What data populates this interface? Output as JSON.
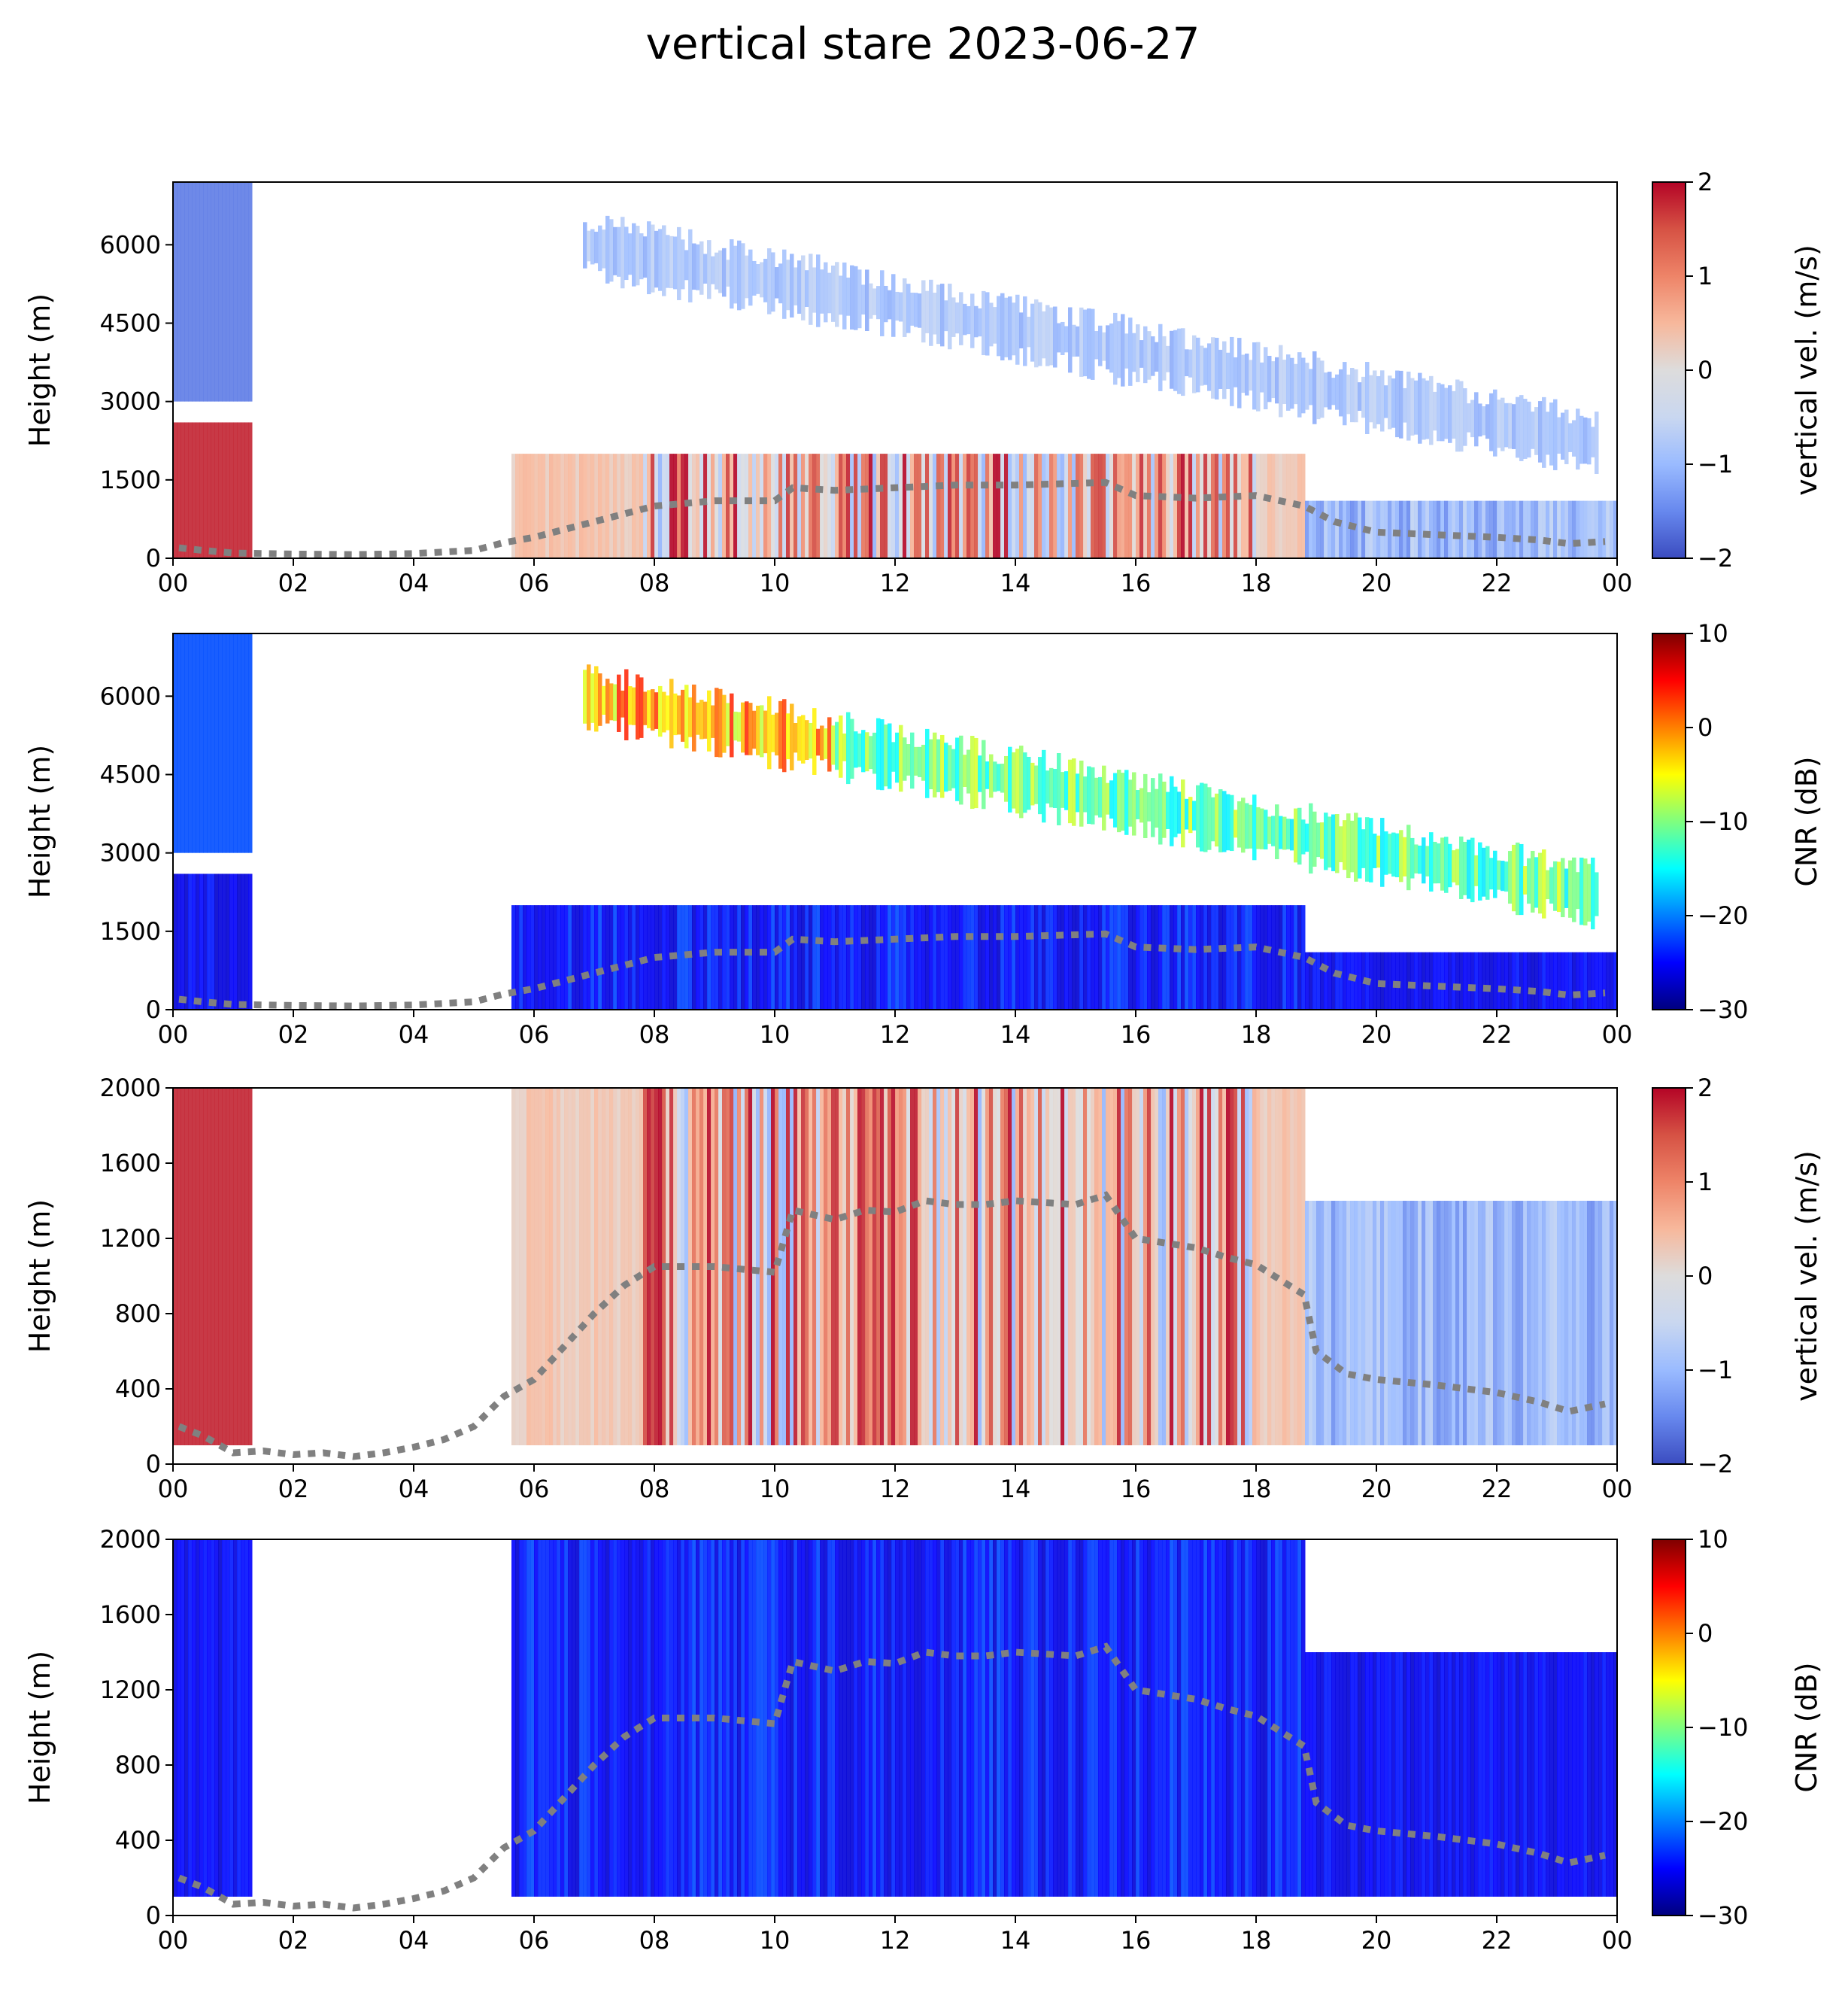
{
  "title": "vertical stare 2023-06-27",
  "colormaps": {
    "velocity": [
      "#3b4cc0",
      "#6788ee",
      "#9abbff",
      "#c9d7f0",
      "#dddcdc",
      "#f7b89c",
      "#ee8468",
      "#d65244",
      "#b40426"
    ],
    "cnr": [
      "#00007f",
      "#0000ff",
      "#007fff",
      "#00ffff",
      "#7fff7f",
      "#ffff00",
      "#ff7f00",
      "#ff0000",
      "#7f0000"
    ]
  },
  "boundary_layer_color": "#808080",
  "chart_data": [
    {
      "type": "heatmap",
      "name": "panel-1-velocity",
      "xlabel": "",
      "ylabel": "Height (m)",
      "x_tick_labels": [
        "00",
        "02",
        "04",
        "06",
        "08",
        "10",
        "12",
        "14",
        "16",
        "18",
        "20",
        "22",
        "00"
      ],
      "x_ticks_hours": [
        0,
        2,
        4,
        6,
        8,
        10,
        12,
        14,
        16,
        18,
        20,
        22,
        24
      ],
      "xlim": [
        0,
        24
      ],
      "y_ticks": [
        0,
        1500,
        3000,
        4500,
        6000
      ],
      "y_tick_labels": [
        "0",
        "1500",
        "3000",
        "4500",
        "6000"
      ],
      "ylim": [
        0,
        7200
      ],
      "colorbar": {
        "label": "vertical vel. (m/s)",
        "ticks": [
          -2,
          -1,
          0,
          1,
          2
        ],
        "tick_labels": [
          "−2",
          "−1",
          "0",
          "1",
          "2"
        ],
        "range": [
          -2,
          2
        ],
        "cmap": "velocity"
      },
      "boundary_layer_height": [
        [
          0.1,
          200
        ],
        [
          0.5,
          150
        ],
        [
          1.0,
          100
        ],
        [
          2.0,
          80
        ],
        [
          3.0,
          70
        ],
        [
          4.0,
          90
        ],
        [
          5.0,
          150
        ],
        [
          5.5,
          300
        ],
        [
          6.0,
          400
        ],
        [
          7.0,
          700
        ],
        [
          8.0,
          1000
        ],
        [
          9.0,
          1100
        ],
        [
          10.0,
          1100
        ],
        [
          10.3,
          1350
        ],
        [
          11.0,
          1300
        ],
        [
          12.0,
          1350
        ],
        [
          13.0,
          1400
        ],
        [
          14.0,
          1400
        ],
        [
          15.5,
          1450
        ],
        [
          16.0,
          1200
        ],
        [
          17.0,
          1150
        ],
        [
          18.0,
          1200
        ],
        [
          18.8,
          1000
        ],
        [
          19.3,
          700
        ],
        [
          20.0,
          500
        ],
        [
          21.0,
          450
        ],
        [
          22.0,
          400
        ],
        [
          22.7,
          350
        ],
        [
          23.2,
          280
        ],
        [
          23.8,
          320
        ]
      ]
    },
    {
      "type": "heatmap",
      "name": "panel-2-cnr",
      "xlabel": "",
      "ylabel": "Height (m)",
      "x_tick_labels": [
        "00",
        "02",
        "04",
        "06",
        "08",
        "10",
        "12",
        "14",
        "16",
        "18",
        "20",
        "22",
        "00"
      ],
      "x_ticks_hours": [
        0,
        2,
        4,
        6,
        8,
        10,
        12,
        14,
        16,
        18,
        20,
        22,
        24
      ],
      "xlim": [
        0,
        24
      ],
      "y_ticks": [
        0,
        1500,
        3000,
        4500,
        6000
      ],
      "y_tick_labels": [
        "0",
        "1500",
        "3000",
        "4500",
        "6000"
      ],
      "ylim": [
        0,
        7200
      ],
      "colorbar": {
        "label": "CNR (dB)",
        "ticks": [
          -30,
          -20,
          -10,
          0,
          10
        ],
        "tick_labels": [
          "−30",
          "−20",
          "−10",
          "0",
          "10"
        ],
        "range": [
          -30,
          10
        ],
        "cmap": "cnr"
      },
      "boundary_layer_height": [
        [
          0.1,
          200
        ],
        [
          0.5,
          150
        ],
        [
          1.0,
          100
        ],
        [
          2.0,
          80
        ],
        [
          3.0,
          70
        ],
        [
          4.0,
          90
        ],
        [
          5.0,
          150
        ],
        [
          5.5,
          300
        ],
        [
          6.0,
          400
        ],
        [
          7.0,
          700
        ],
        [
          8.0,
          1000
        ],
        [
          9.0,
          1100
        ],
        [
          10.0,
          1100
        ],
        [
          10.3,
          1350
        ],
        [
          11.0,
          1300
        ],
        [
          12.0,
          1350
        ],
        [
          13.0,
          1400
        ],
        [
          14.0,
          1400
        ],
        [
          15.5,
          1450
        ],
        [
          16.0,
          1200
        ],
        [
          17.0,
          1150
        ],
        [
          18.0,
          1200
        ],
        [
          18.8,
          1000
        ],
        [
          19.3,
          700
        ],
        [
          20.0,
          500
        ],
        [
          21.0,
          450
        ],
        [
          22.0,
          400
        ],
        [
          22.7,
          350
        ],
        [
          23.2,
          280
        ],
        [
          23.8,
          320
        ]
      ]
    },
    {
      "type": "heatmap",
      "name": "panel-3-velocity-zoom",
      "xlabel": "",
      "ylabel": "Height (m)",
      "x_tick_labels": [
        "00",
        "02",
        "04",
        "06",
        "08",
        "10",
        "12",
        "14",
        "16",
        "18",
        "20",
        "22",
        "00"
      ],
      "x_ticks_hours": [
        0,
        2,
        4,
        6,
        8,
        10,
        12,
        14,
        16,
        18,
        20,
        22,
        24
      ],
      "xlim": [
        0,
        24
      ],
      "y_ticks": [
        0,
        400,
        800,
        1200,
        1600,
        2000
      ],
      "y_tick_labels": [
        "0",
        "400",
        "800",
        "1200",
        "1600",
        "2000"
      ],
      "ylim": [
        0,
        2000
      ],
      "colorbar": {
        "label": "vertical vel. (m/s)",
        "ticks": [
          -2,
          -1,
          0,
          1,
          2
        ],
        "tick_labels": [
          "−2",
          "−1",
          "0",
          "1",
          "2"
        ],
        "range": [
          -2,
          2
        ],
        "cmap": "velocity"
      },
      "boundary_layer_height": [
        [
          0.1,
          200
        ],
        [
          0.5,
          150
        ],
        [
          1.0,
          60
        ],
        [
          1.5,
          70
        ],
        [
          2.0,
          50
        ],
        [
          2.5,
          60
        ],
        [
          3.0,
          40
        ],
        [
          3.5,
          60
        ],
        [
          4.0,
          90
        ],
        [
          4.5,
          130
        ],
        [
          5.0,
          200
        ],
        [
          5.5,
          360
        ],
        [
          6.0,
          450
        ],
        [
          7.0,
          800
        ],
        [
          7.5,
          950
        ],
        [
          8.0,
          1050
        ],
        [
          9.0,
          1050
        ],
        [
          10.0,
          1020
        ],
        [
          10.3,
          1350
        ],
        [
          11.0,
          1300
        ],
        [
          11.5,
          1350
        ],
        [
          12.0,
          1340
        ],
        [
          12.5,
          1400
        ],
        [
          13.0,
          1380
        ],
        [
          13.5,
          1380
        ],
        [
          14.0,
          1400
        ],
        [
          15.0,
          1380
        ],
        [
          15.5,
          1430
        ],
        [
          16.0,
          1200
        ],
        [
          17.0,
          1150
        ],
        [
          17.5,
          1100
        ],
        [
          18.0,
          1060
        ],
        [
          18.8,
          900
        ],
        [
          19.0,
          600
        ],
        [
          19.5,
          480
        ],
        [
          20.0,
          450
        ],
        [
          21.0,
          420
        ],
        [
          22.0,
          380
        ],
        [
          22.7,
          330
        ],
        [
          23.2,
          280
        ],
        [
          23.8,
          320
        ]
      ]
    },
    {
      "type": "heatmap",
      "name": "panel-4-cnr-zoom",
      "xlabel": "",
      "ylabel": "Height (m)",
      "x_tick_labels": [
        "00",
        "02",
        "04",
        "06",
        "08",
        "10",
        "12",
        "14",
        "16",
        "18",
        "20",
        "22",
        "00"
      ],
      "x_ticks_hours": [
        0,
        2,
        4,
        6,
        8,
        10,
        12,
        14,
        16,
        18,
        20,
        22,
        24
      ],
      "xlim": [
        0,
        24
      ],
      "y_ticks": [
        0,
        400,
        800,
        1200,
        1600,
        2000
      ],
      "y_tick_labels": [
        "0",
        "400",
        "800",
        "1200",
        "1600",
        "2000"
      ],
      "ylim": [
        0,
        2000
      ],
      "colorbar": {
        "label": "CNR (dB)",
        "ticks": [
          -30,
          -20,
          -10,
          0,
          10
        ],
        "tick_labels": [
          "−30",
          "−20",
          "−10",
          "0",
          "10"
        ],
        "range": [
          -30,
          10
        ],
        "cmap": "cnr"
      },
      "boundary_layer_height": [
        [
          0.1,
          200
        ],
        [
          0.5,
          150
        ],
        [
          1.0,
          60
        ],
        [
          1.5,
          70
        ],
        [
          2.0,
          50
        ],
        [
          2.5,
          60
        ],
        [
          3.0,
          40
        ],
        [
          3.5,
          60
        ],
        [
          4.0,
          90
        ],
        [
          4.5,
          130
        ],
        [
          5.0,
          200
        ],
        [
          5.5,
          360
        ],
        [
          6.0,
          450
        ],
        [
          7.0,
          800
        ],
        [
          7.5,
          950
        ],
        [
          8.0,
          1050
        ],
        [
          9.0,
          1050
        ],
        [
          10.0,
          1020
        ],
        [
          10.3,
          1350
        ],
        [
          11.0,
          1300
        ],
        [
          11.5,
          1350
        ],
        [
          12.0,
          1340
        ],
        [
          12.5,
          1400
        ],
        [
          13.0,
          1380
        ],
        [
          13.5,
          1380
        ],
        [
          14.0,
          1400
        ],
        [
          15.0,
          1380
        ],
        [
          15.5,
          1430
        ],
        [
          16.0,
          1200
        ],
        [
          17.0,
          1150
        ],
        [
          17.5,
          1100
        ],
        [
          18.0,
          1060
        ],
        [
          18.8,
          900
        ],
        [
          19.0,
          600
        ],
        [
          19.5,
          480
        ],
        [
          20.0,
          450
        ],
        [
          21.0,
          420
        ],
        [
          22.0,
          380
        ],
        [
          22.7,
          330
        ],
        [
          23.2,
          280
        ],
        [
          23.8,
          320
        ]
      ]
    }
  ]
}
